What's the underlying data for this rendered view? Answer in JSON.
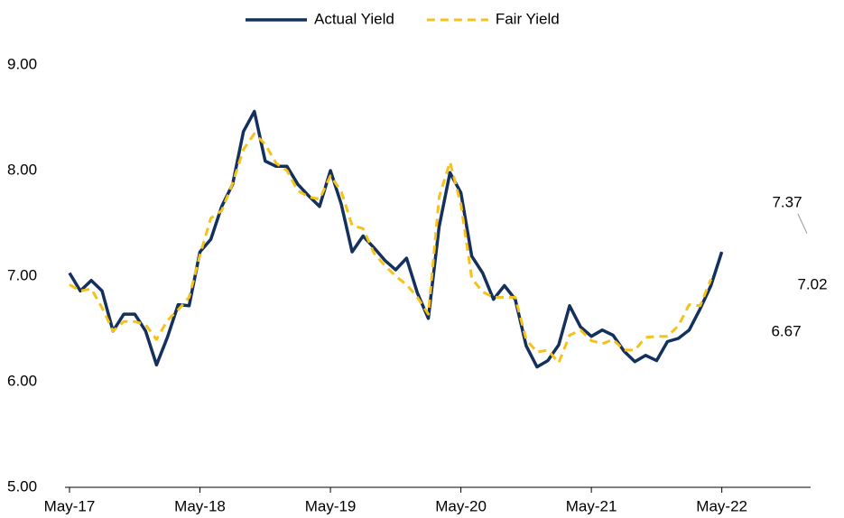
{
  "chart_data": {
    "type": "line",
    "categories": [
      "May-17",
      null,
      null,
      null,
      null,
      null,
      null,
      null,
      null,
      null,
      null,
      null,
      "May-18",
      null,
      null,
      null,
      null,
      null,
      null,
      null,
      null,
      null,
      null,
      null,
      "May-19",
      null,
      null,
      null,
      null,
      null,
      null,
      null,
      null,
      null,
      null,
      null,
      "May-20",
      null,
      null,
      null,
      null,
      null,
      null,
      null,
      null,
      null,
      null,
      null,
      "May-21",
      null,
      null,
      null,
      null,
      null,
      null,
      null,
      null,
      null,
      null,
      null,
      "May-22",
      null,
      null,
      null,
      null,
      null,
      null,
      null,
      null
    ],
    "series": [
      {
        "name": "Actual Yield",
        "color": "#14305c",
        "dash": false,
        "values": [
          7.03,
          6.86,
          6.96,
          6.86,
          6.48,
          6.64,
          6.64,
          6.48,
          6.16,
          6.42,
          6.73,
          6.72,
          7.23,
          7.35,
          7.66,
          7.87,
          8.37,
          8.56,
          8.09,
          8.04,
          8.04,
          7.87,
          7.76,
          7.66,
          8.0,
          7.68,
          7.23,
          7.38,
          7.27,
          7.15,
          7.06,
          7.17,
          6.84,
          6.6,
          7.47,
          7.98,
          7.79,
          7.19,
          7.03,
          6.78,
          6.91,
          6.78,
          6.34,
          6.14,
          6.2,
          6.35,
          6.72,
          6.52,
          6.43,
          6.49,
          6.44,
          6.29,
          6.19,
          6.25,
          6.2,
          6.38,
          6.41,
          6.49,
          6.69,
          6.91,
          7.23,
          null,
          null,
          null,
          null,
          null,
          null,
          null,
          null
        ]
      },
      {
        "name": "Fair Yield",
        "color": "#f5c21b",
        "dash": true,
        "values": [
          6.92,
          6.86,
          6.88,
          6.7,
          6.48,
          6.57,
          6.57,
          6.54,
          6.4,
          6.58,
          6.68,
          6.8,
          7.2,
          7.55,
          7.62,
          7.88,
          8.2,
          8.35,
          8.25,
          8.07,
          8.0,
          7.81,
          7.75,
          7.73,
          7.95,
          7.8,
          7.48,
          7.45,
          7.22,
          7.1,
          7.0,
          6.92,
          6.8,
          6.64,
          7.75,
          8.08,
          7.68,
          6.98,
          6.85,
          6.8,
          6.8,
          6.8,
          6.4,
          6.28,
          6.3,
          6.18,
          6.44,
          6.49,
          6.39,
          6.36,
          6.4,
          6.3,
          6.3,
          6.42,
          6.43,
          6.43,
          6.53,
          6.73,
          6.72,
          6.97,
          null,
          null,
          null,
          null,
          null,
          null,
          null,
          null,
          null
        ]
      },
      {
        "color": "#c00000",
        "dash": false,
        "label": true,
        "values": [
          null,
          null,
          null,
          null,
          null,
          null,
          null,
          null,
          null,
          null,
          null,
          null,
          null,
          null,
          null,
          null,
          null,
          null,
          null,
          null,
          null,
          null,
          null,
          null,
          null,
          null,
          null,
          null,
          null,
          null,
          null,
          null,
          null,
          null,
          null,
          null,
          null,
          null,
          null,
          null,
          null,
          null,
          null,
          null,
          null,
          null,
          null,
          null,
          null,
          null,
          null,
          null,
          null,
          null,
          null,
          null,
          null,
          null,
          null,
          null,
          7.23,
          null,
          null,
          null,
          null,
          null,
          null,
          null,
          7.37
        ]
      },
      {
        "color": "#7f7f7f",
        "dash": false,
        "label": true,
        "values": [
          null,
          null,
          null,
          null,
          null,
          null,
          null,
          null,
          null,
          null,
          null,
          null,
          null,
          null,
          null,
          null,
          null,
          null,
          null,
          null,
          null,
          null,
          null,
          null,
          null,
          null,
          null,
          null,
          null,
          null,
          null,
          null,
          null,
          null,
          null,
          null,
          null,
          null,
          null,
          null,
          null,
          null,
          null,
          null,
          null,
          null,
          null,
          null,
          null,
          null,
          null,
          null,
          null,
          null,
          null,
          null,
          null,
          null,
          null,
          null,
          7.23,
          null,
          null,
          null,
          null,
          null,
          null,
          null,
          7.02
        ]
      },
      {
        "color": "#1f3a64",
        "dash": false,
        "label": true,
        "values": [
          null,
          null,
          null,
          null,
          null,
          null,
          null,
          null,
          null,
          null,
          null,
          null,
          null,
          null,
          null,
          null,
          null,
          null,
          null,
          null,
          null,
          null,
          null,
          null,
          null,
          null,
          null,
          null,
          null,
          null,
          null,
          null,
          null,
          null,
          null,
          null,
          null,
          null,
          null,
          null,
          null,
          null,
          null,
          null,
          null,
          null,
          null,
          null,
          null,
          null,
          null,
          null,
          null,
          null,
          null,
          null,
          null,
          null,
          null,
          null,
          7.23,
          null,
          null,
          null,
          null,
          null,
          null,
          null,
          6.67
        ]
      }
    ],
    "ylim": [
      5,
      9
    ],
    "yticks": [
      {
        "value": 5,
        "label": "5.00"
      },
      {
        "value": 6,
        "label": "6.00"
      },
      {
        "value": 7,
        "label": "7.00"
      },
      {
        "value": 8,
        "label": "8.00"
      },
      {
        "value": 9,
        "label": "9.00"
      }
    ],
    "legend": "top"
  }
}
